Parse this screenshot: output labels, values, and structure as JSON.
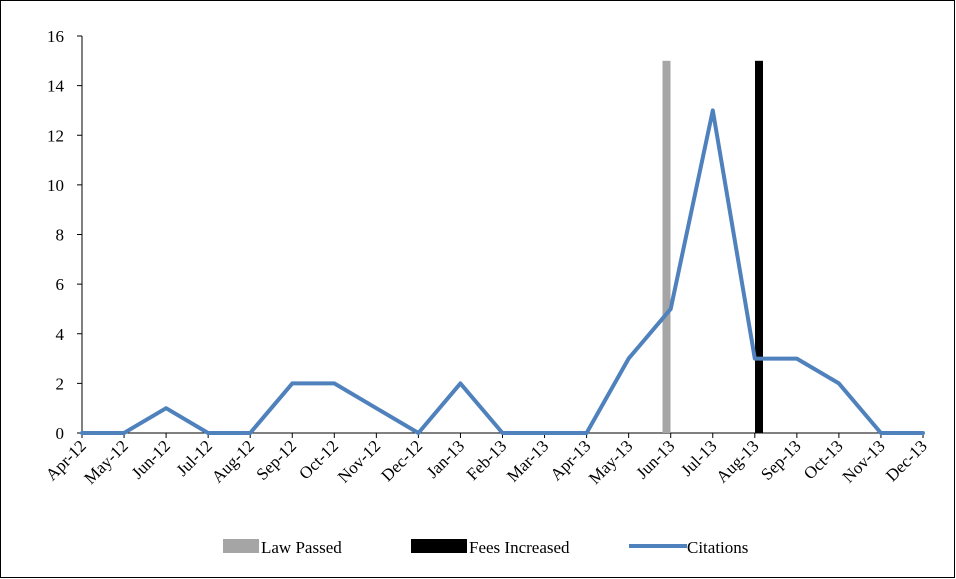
{
  "chart_data": {
    "type": "line",
    "title": "",
    "xlabel": "",
    "ylabel": "",
    "ylim": [
      0,
      16
    ],
    "yticks": [
      0,
      2,
      4,
      6,
      8,
      10,
      12,
      14,
      16
    ],
    "grid": false,
    "legend_position": "bottom",
    "categories": [
      "Apr-12",
      "May-12",
      "Jun-12",
      "Jul-12",
      "Aug-12",
      "Sep-12",
      "Oct-12",
      "Nov-12",
      "Dec-12",
      "Jan-13",
      "Feb-13",
      "Mar-13",
      "Apr-13",
      "May-13",
      "Jun-13",
      "Jul-13",
      "Aug-13",
      "Sep-13",
      "Oct-13",
      "Nov-13",
      "Dec-13"
    ],
    "series": [
      {
        "name": "Citations",
        "type": "line",
        "color": "#4f81bd",
        "values": [
          0,
          0,
          1,
          0,
          0,
          2,
          2,
          1,
          0,
          2,
          0,
          0,
          0,
          3,
          5,
          13,
          3,
          3,
          2,
          0,
          0
        ]
      }
    ],
    "markers": [
      {
        "name": "Law Passed",
        "type": "bar",
        "color": "#a5a5a5",
        "x": "Jun-13",
        "offset": -0.1,
        "value": 15
      },
      {
        "name": "Fees Increased",
        "type": "bar",
        "color": "#000000",
        "x": "Aug-13",
        "offset": 0.1,
        "value": 15
      }
    ],
    "legend": [
      "Law Passed",
      "Fees Increased",
      "Citations"
    ]
  }
}
